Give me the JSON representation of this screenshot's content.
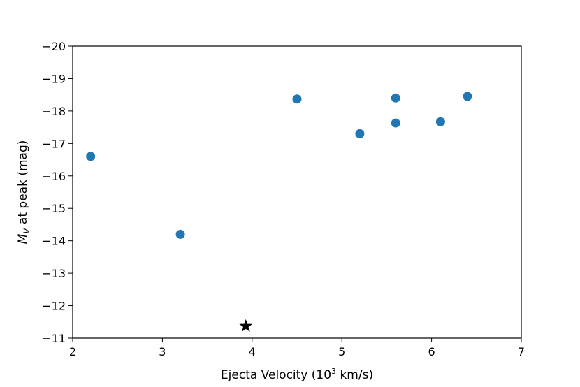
{
  "chart_data": {
    "type": "scatter",
    "title": "",
    "xlabel": {
      "text": "Ejecta Velocity (10",
      "sup": "3",
      "suffix": " km/s)"
    },
    "ylabel": {
      "symbol": "M",
      "subscript": "V",
      "text": " at peak (mag)"
    },
    "xlim": [
      2,
      7
    ],
    "ylim": [
      -11,
      -20
    ],
    "y_inverted": true,
    "xticks": [
      2,
      3,
      4,
      5,
      6,
      7
    ],
    "xtick_labels": [
      "2",
      "3",
      "4",
      "5",
      "6",
      "7"
    ],
    "yticks": [
      -11,
      -12,
      -13,
      -14,
      -15,
      -16,
      -17,
      -18,
      -19,
      -20
    ],
    "ytick_labels": [
      "−11",
      "−12",
      "−13",
      "−14",
      "−15",
      "−16",
      "−17",
      "−18",
      "−19",
      "−20"
    ],
    "grid": false,
    "series": [
      {
        "marker": "circle",
        "color": "#1f77b4",
        "x": [
          2.2,
          3.2,
          4.5,
          5.2,
          5.6,
          5.6,
          6.1,
          6.4
        ],
        "y": [
          -16.6,
          -14.2,
          -18.37,
          -17.3,
          -18.4,
          -17.63,
          -17.67,
          -18.45
        ]
      },
      {
        "marker": "star",
        "color": "#000000",
        "x": [
          3.93
        ],
        "y": [
          -11.37
        ]
      }
    ]
  }
}
